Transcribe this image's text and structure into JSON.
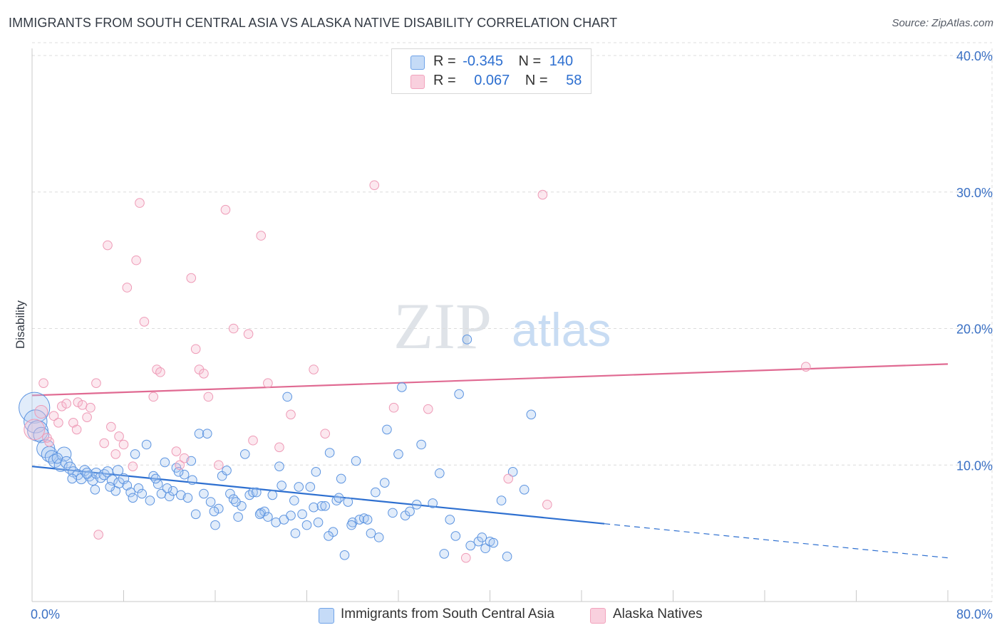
{
  "title": "IMMIGRANTS FROM SOUTH CENTRAL ASIA VS ALASKA NATIVE DISABILITY CORRELATION CHART",
  "source": "Source: ZipAtlas.com",
  "watermark": {
    "zip": "ZIP",
    "atlas": "atlas"
  },
  "colors": {
    "blue": "#6fa3e8",
    "blue_line": "#2d6fd0",
    "pink": "#f2a3bd",
    "pink_line": "#e06a92",
    "axis_text": "#3a70c4"
  },
  "legend": {
    "rows": [
      {
        "r_label": "R =",
        "r_value": "-0.345",
        "n_label": "N =",
        "n_value": "140"
      },
      {
        "r_label": "R =",
        "r_value": "0.067",
        "n_label": "N =",
        "n_value": "58"
      }
    ]
  },
  "bottom_legend": [
    "Immigrants from South Central Asia",
    "Alaska Natives"
  ],
  "chart_data": {
    "type": "scatter",
    "title": "IMMIGRANTS FROM SOUTH CENTRAL ASIA VS ALASKA NATIVE DISABILITY CORRELATION CHART",
    "xlabel": "",
    "ylabel": "Disability",
    "xlim": [
      0,
      80
    ],
    "ylim": [
      0,
      40
    ],
    "x_tick_labels": [
      "0.0%",
      "80.0%"
    ],
    "y_tick_labels": [
      "10.0%",
      "20.0%",
      "30.0%",
      "40.0%"
    ],
    "y_ticks": [
      10,
      20,
      30,
      40
    ],
    "x_minor_ticks": [
      0,
      8,
      16,
      24,
      32,
      40,
      48,
      56,
      64,
      72,
      80
    ],
    "grid": true,
    "legend_position": "top-center",
    "series": [
      {
        "name": "Immigrants from South Central Asia",
        "color": "#6fa3e8",
        "trend": {
          "x0": 0,
          "y0": 9.9,
          "x1": 50,
          "y1": 5.7,
          "dashed_to_x": 80,
          "dashed_to_y": 3.2
        },
        "points": [
          [
            0.2,
            14.2,
            2.4
          ],
          [
            0.3,
            13.2,
            1.8
          ],
          [
            0.5,
            12.5,
            1.6
          ],
          [
            0.8,
            12.2,
            1.2
          ],
          [
            1.2,
            11.2,
            1.4
          ],
          [
            1.5,
            10.8,
            1.2
          ],
          [
            1.7,
            10.6,
            1.0
          ],
          [
            2.0,
            10.3,
            1.0
          ],
          [
            2.5,
            10.0,
            1.0
          ],
          [
            2.8,
            10.8,
            1.1
          ],
          [
            3.0,
            10.2,
            0.9
          ],
          [
            3.3,
            9.8,
            0.9
          ],
          [
            3.6,
            9.5,
            0.8
          ],
          [
            4.0,
            9.3,
            0.8
          ],
          [
            4.3,
            9.0,
            0.8
          ],
          [
            4.6,
            9.6,
            0.8
          ],
          [
            5.0,
            9.2,
            0.8
          ],
          [
            5.3,
            8.9,
            0.8
          ],
          [
            5.6,
            9.4,
            0.8
          ],
          [
            6.0,
            9.1,
            0.8
          ],
          [
            6.3,
            9.3,
            0.8
          ],
          [
            6.6,
            9.5,
            0.8
          ],
          [
            7.0,
            8.9,
            0.8
          ],
          [
            7.3,
            8.1,
            0.7
          ],
          [
            7.6,
            8.7,
            0.8
          ],
          [
            8.0,
            9.0,
            0.8
          ],
          [
            8.3,
            8.5,
            0.7
          ],
          [
            8.6,
            8.0,
            0.7
          ],
          [
            9.0,
            10.8,
            0.7
          ],
          [
            9.3,
            8.3,
            0.7
          ],
          [
            9.6,
            7.9,
            0.7
          ],
          [
            10.0,
            11.5,
            0.7
          ],
          [
            10.3,
            7.4,
            0.7
          ],
          [
            10.6,
            9.2,
            0.7
          ],
          [
            11.0,
            8.6,
            0.7
          ],
          [
            11.3,
            7.9,
            0.7
          ],
          [
            11.6,
            10.2,
            0.7
          ],
          [
            12.0,
            7.7,
            0.7
          ],
          [
            12.3,
            8.1,
            0.7
          ],
          [
            12.6,
            9.8,
            0.7
          ],
          [
            13.0,
            7.8,
            0.7
          ],
          [
            13.3,
            9.3,
            0.7
          ],
          [
            13.6,
            7.6,
            0.7
          ],
          [
            14.0,
            8.9,
            0.7
          ],
          [
            14.3,
            6.4,
            0.7
          ],
          [
            14.6,
            12.3,
            0.7
          ],
          [
            15.0,
            7.9,
            0.7
          ],
          [
            15.3,
            12.3,
            0.7
          ],
          [
            15.6,
            7.3,
            0.7
          ],
          [
            16.0,
            5.6,
            0.7
          ],
          [
            16.3,
            6.8,
            0.7
          ],
          [
            16.6,
            9.2,
            0.7
          ],
          [
            17.0,
            9.6,
            0.7
          ],
          [
            17.3,
            7.9,
            0.7
          ],
          [
            17.6,
            7.5,
            0.7
          ],
          [
            18.0,
            6.2,
            0.7
          ],
          [
            18.3,
            7.0,
            0.7
          ],
          [
            18.6,
            10.8,
            0.7
          ],
          [
            19.0,
            7.8,
            0.7
          ],
          [
            19.3,
            8.0,
            0.7
          ],
          [
            19.6,
            8.0,
            0.7
          ],
          [
            20.0,
            6.5,
            0.7
          ],
          [
            20.3,
            6.6,
            0.7
          ],
          [
            20.6,
            6.2,
            0.7
          ],
          [
            21.0,
            7.8,
            0.7
          ],
          [
            21.3,
            5.8,
            0.7
          ],
          [
            21.6,
            9.9,
            0.7
          ],
          [
            22.0,
            6.0,
            0.7
          ],
          [
            22.3,
            15.0,
            0.7
          ],
          [
            22.6,
            6.3,
            0.7
          ],
          [
            23.0,
            5.0,
            0.7
          ],
          [
            23.3,
            8.4,
            0.7
          ],
          [
            23.6,
            6.4,
            0.7
          ],
          [
            24.0,
            5.6,
            0.7
          ],
          [
            24.3,
            8.4,
            0.7
          ],
          [
            24.6,
            6.9,
            0.7
          ],
          [
            25.0,
            5.8,
            0.7
          ],
          [
            25.3,
            7.0,
            0.7
          ],
          [
            25.6,
            7.0,
            0.7
          ],
          [
            26.0,
            10.9,
            0.7
          ],
          [
            26.3,
            5.1,
            0.7
          ],
          [
            26.6,
            7.4,
            0.7
          ],
          [
            27.0,
            9.0,
            0.7
          ],
          [
            27.3,
            3.4,
            0.7
          ],
          [
            27.6,
            7.3,
            0.7
          ],
          [
            28.0,
            5.8,
            0.7
          ],
          [
            28.3,
            10.3,
            0.7
          ],
          [
            28.6,
            6.0,
            0.7
          ],
          [
            29.0,
            6.1,
            0.7
          ],
          [
            29.3,
            6.0,
            0.7
          ],
          [
            29.6,
            5.0,
            0.7
          ],
          [
            30.0,
            8.0,
            0.7
          ],
          [
            30.3,
            4.7,
            0.7
          ],
          [
            31.0,
            12.6,
            0.7
          ],
          [
            31.5,
            6.5,
            0.7
          ],
          [
            32.0,
            10.8,
            0.7
          ],
          [
            32.3,
            15.7,
            0.7
          ],
          [
            32.6,
            6.3,
            0.7
          ],
          [
            33.0,
            6.6,
            0.7
          ],
          [
            33.6,
            7.1,
            0.7
          ],
          [
            34.0,
            11.5,
            0.7
          ],
          [
            35.0,
            7.2,
            0.7
          ],
          [
            35.6,
            9.4,
            0.7
          ],
          [
            36.0,
            3.5,
            0.7
          ],
          [
            36.5,
            6.0,
            0.7
          ],
          [
            37.0,
            4.8,
            0.7
          ],
          [
            37.3,
            15.2,
            0.7
          ],
          [
            38.0,
            19.2,
            0.7
          ],
          [
            38.3,
            4.1,
            0.7
          ],
          [
            39.0,
            4.4,
            0.7
          ],
          [
            39.3,
            4.7,
            0.7
          ],
          [
            39.6,
            3.9,
            0.7
          ],
          [
            40.0,
            4.4,
            0.7
          ],
          [
            40.3,
            4.3,
            0.7
          ],
          [
            41.0,
            7.4,
            0.7
          ],
          [
            41.5,
            3.3,
            0.7
          ],
          [
            42.0,
            9.5,
            0.7
          ],
          [
            43.0,
            8.2,
            0.7
          ],
          [
            43.6,
            13.7,
            0.7
          ],
          [
            3.5,
            9.0,
            0.7
          ],
          [
            5.5,
            8.2,
            0.7
          ],
          [
            6.8,
            8.4,
            0.7
          ],
          [
            8.8,
            7.6,
            0.7
          ],
          [
            11.8,
            8.3,
            0.7
          ],
          [
            13.9,
            10.3,
            0.7
          ],
          [
            15.9,
            6.6,
            0.7
          ],
          [
            19.9,
            6.4,
            0.7
          ],
          [
            22.9,
            7.4,
            0.7
          ],
          [
            25.9,
            4.8,
            0.7
          ],
          [
            27.9,
            5.6,
            0.7
          ],
          [
            2.2,
            10.5,
            0.8
          ],
          [
            4.8,
            9.4,
            0.8
          ],
          [
            7.5,
            9.6,
            0.8
          ],
          [
            10.8,
            9.0,
            0.7
          ],
          [
            12.8,
            9.5,
            0.7
          ],
          [
            17.8,
            7.3,
            0.7
          ],
          [
            21.8,
            8.5,
            0.7
          ],
          [
            24.8,
            9.5,
            0.7
          ],
          [
            26.8,
            7.6,
            0.7
          ],
          [
            30.8,
            8.7,
            0.7
          ]
        ]
      },
      {
        "name": "Alaska Natives",
        "color": "#f2a3bd",
        "trend": {
          "x0": 0,
          "y0": 15.1,
          "x1": 80,
          "y1": 17.4
        },
        "points": [
          [
            0.2,
            12.6,
            1.6
          ],
          [
            0.8,
            13.9,
            1.0
          ],
          [
            1.0,
            16.0,
            0.7
          ],
          [
            1.5,
            11.7,
            0.7
          ],
          [
            1.9,
            13.6,
            0.7
          ],
          [
            2.3,
            13.1,
            0.7
          ],
          [
            2.6,
            14.3,
            0.7
          ],
          [
            3.0,
            14.5,
            0.7
          ],
          [
            3.6,
            13.1,
            0.7
          ],
          [
            4.0,
            14.6,
            0.7
          ],
          [
            4.4,
            14.4,
            0.7
          ],
          [
            4.8,
            13.5,
            0.7
          ],
          [
            5.1,
            14.2,
            0.7
          ],
          [
            5.6,
            16.0,
            0.7
          ],
          [
            5.8,
            4.9,
            0.7
          ],
          [
            6.3,
            11.6,
            0.7
          ],
          [
            6.6,
            26.1,
            0.7
          ],
          [
            7.3,
            10.8,
            0.7
          ],
          [
            7.6,
            12.1,
            0.7
          ],
          [
            8.0,
            11.5,
            0.7
          ],
          [
            8.3,
            23.0,
            0.7
          ],
          [
            8.8,
            9.9,
            0.7
          ],
          [
            9.1,
            25.0,
            0.7
          ],
          [
            9.4,
            29.2,
            0.7
          ],
          [
            9.8,
            20.5,
            0.7
          ],
          [
            10.6,
            15.0,
            0.7
          ],
          [
            10.9,
            17.0,
            0.7
          ],
          [
            11.2,
            16.8,
            0.7
          ],
          [
            12.6,
            11.0,
            0.7
          ],
          [
            12.9,
            10.0,
            0.7
          ],
          [
            13.3,
            10.5,
            0.7
          ],
          [
            13.9,
            23.7,
            0.7
          ],
          [
            14.3,
            18.5,
            0.7
          ],
          [
            14.6,
            17.0,
            0.7
          ],
          [
            15.0,
            16.7,
            0.7
          ],
          [
            15.4,
            15.0,
            0.7
          ],
          [
            16.3,
            10.0,
            0.7
          ],
          [
            16.9,
            28.7,
            0.7
          ],
          [
            17.6,
            20.0,
            0.7
          ],
          [
            18.9,
            19.6,
            0.7
          ],
          [
            19.3,
            11.8,
            0.7
          ],
          [
            20.0,
            26.8,
            0.7
          ],
          [
            20.6,
            16.0,
            0.7
          ],
          [
            21.6,
            11.3,
            0.7
          ],
          [
            22.6,
            13.7,
            0.7
          ],
          [
            24.6,
            17.0,
            0.7
          ],
          [
            25.6,
            12.3,
            0.7
          ],
          [
            29.9,
            30.5,
            0.7
          ],
          [
            31.6,
            14.2,
            0.7
          ],
          [
            34.6,
            14.1,
            0.7
          ],
          [
            37.9,
            3.2,
            0.7
          ],
          [
            41.6,
            9.0,
            0.7
          ],
          [
            44.6,
            29.8,
            0.7
          ],
          [
            45.0,
            7.1,
            0.7
          ],
          [
            67.6,
            17.2,
            0.7
          ],
          [
            1.3,
            12.0,
            0.7
          ],
          [
            3.9,
            12.6,
            0.7
          ],
          [
            6.9,
            12.8,
            0.7
          ]
        ]
      }
    ]
  }
}
